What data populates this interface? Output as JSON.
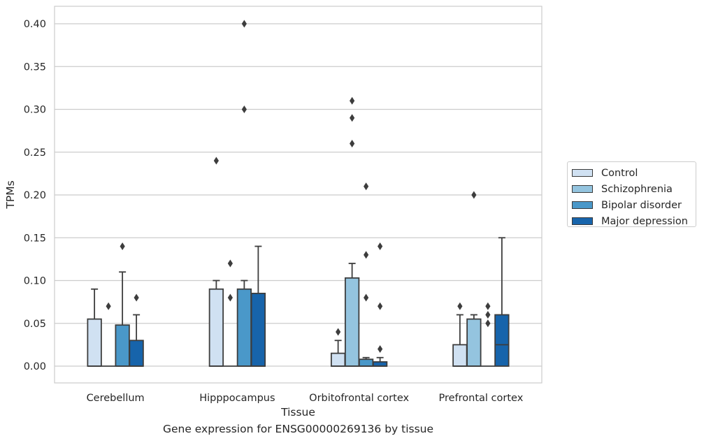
{
  "caption": "Gene expression for ENSG00000269136 by tissue",
  "chart_data": {
    "type": "box",
    "xlabel": "Tissue",
    "ylabel": "TPMs",
    "ylim": [
      -0.019,
      0.42
    ],
    "yticks": [
      "0.00",
      "0.05",
      "0.10",
      "0.15",
      "0.20",
      "0.25",
      "0.30",
      "0.35",
      "0.40"
    ],
    "grid": true,
    "legend_position": "outside-right",
    "categories": [
      "Cerebellum",
      "Hipppocampus",
      "Orbitofrontal cortex",
      "Prefrontal cortex"
    ],
    "series": [
      {
        "name": "Control",
        "color": "#d0e1f2",
        "boxes": [
          {
            "q1": 0.0,
            "median": 0.0,
            "q3": 0.055,
            "whisker_low": 0.0,
            "whisker_high": 0.09,
            "outliers": []
          },
          {
            "q1": 0.0,
            "median": 0.0,
            "q3": 0.09,
            "whisker_low": 0.0,
            "whisker_high": 0.1,
            "outliers": [
              0.24
            ]
          },
          {
            "q1": 0.0,
            "median": 0.0,
            "q3": 0.015,
            "whisker_low": 0.0,
            "whisker_high": 0.03,
            "outliers": [
              0.04
            ]
          },
          {
            "q1": 0.0,
            "median": 0.0,
            "q3": 0.025,
            "whisker_low": 0.0,
            "whisker_high": 0.06,
            "outliers": [
              0.07
            ]
          }
        ]
      },
      {
        "name": "Schizophrenia",
        "color": "#94c4df",
        "boxes": [
          {
            "q1": 0.0,
            "median": 0.0,
            "q3": 0.0,
            "whisker_low": 0.0,
            "whisker_high": 0.0,
            "outliers": [
              0.07
            ]
          },
          {
            "q1": 0.0,
            "median": 0.0,
            "q3": 0.0,
            "whisker_low": 0.0,
            "whisker_high": 0.0,
            "outliers": [
              0.08,
              0.12
            ]
          },
          {
            "q1": 0.0,
            "median": 0.0,
            "q3": 0.103,
            "whisker_low": 0.0,
            "whisker_high": 0.12,
            "outliers": [
              0.26,
              0.29,
              0.31
            ]
          },
          {
            "q1": 0.0,
            "median": 0.0,
            "q3": 0.055,
            "whisker_low": 0.0,
            "whisker_high": 0.06,
            "outliers": [
              0.2
            ]
          }
        ]
      },
      {
        "name": "Bipolar disorder",
        "color": "#4a98c9",
        "boxes": [
          {
            "q1": 0.0,
            "median": 0.0,
            "q3": 0.048,
            "whisker_low": 0.0,
            "whisker_high": 0.11,
            "outliers": [
              0.14
            ]
          },
          {
            "q1": 0.0,
            "median": 0.0,
            "q3": 0.09,
            "whisker_low": 0.0,
            "whisker_high": 0.1,
            "outliers": [
              0.3,
              0.4
            ]
          },
          {
            "q1": 0.0,
            "median": 0.0,
            "q3": 0.008,
            "whisker_low": 0.0,
            "whisker_high": 0.01,
            "outliers": [
              0.08,
              0.13,
              0.21
            ]
          },
          {
            "q1": 0.0,
            "median": 0.0,
            "q3": 0.0,
            "whisker_low": 0.0,
            "whisker_high": 0.0,
            "outliers": [
              0.05,
              0.06,
              0.07
            ]
          }
        ]
      },
      {
        "name": "Major depression",
        "color": "#1764ab",
        "boxes": [
          {
            "q1": 0.0,
            "median": 0.0,
            "q3": 0.03,
            "whisker_low": 0.0,
            "whisker_high": 0.06,
            "outliers": [
              0.08
            ]
          },
          {
            "q1": 0.0,
            "median": 0.0,
            "q3": 0.085,
            "whisker_low": 0.0,
            "whisker_high": 0.14,
            "outliers": []
          },
          {
            "q1": 0.0,
            "median": 0.0,
            "q3": 0.005,
            "whisker_low": 0.0,
            "whisker_high": 0.01,
            "outliers": [
              0.02,
              0.07,
              0.14
            ]
          },
          {
            "q1": 0.0,
            "median": 0.025,
            "q3": 0.06,
            "whisker_low": 0.0,
            "whisker_high": 0.15,
            "outliers": []
          }
        ]
      }
    ]
  }
}
